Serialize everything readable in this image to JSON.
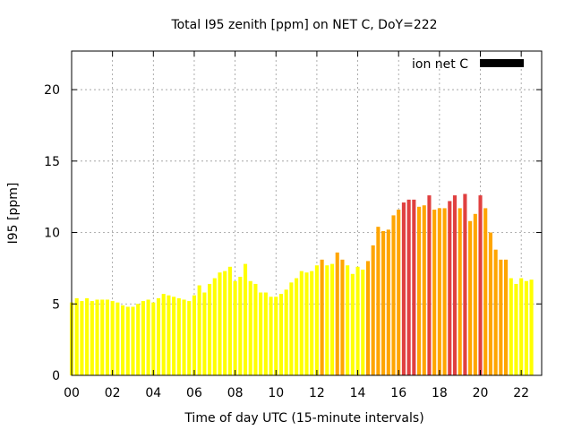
{
  "chart_data": {
    "type": "bar",
    "title": "Total I95 zenith [ppm] on NET C, DoY=222",
    "xlabel": "Time of day UTC (15-minute intervals)",
    "ylabel": "I95 [ppm]",
    "legend": {
      "label": "ion net C",
      "placement": "top-right",
      "swatch_color": "#000000"
    },
    "xlim": [
      0,
      23
    ],
    "ylim": [
      0,
      22.7
    ],
    "grid": true,
    "x_ticks": [
      "00",
      "02",
      "04",
      "06",
      "08",
      "10",
      "12",
      "14",
      "16",
      "18",
      "20",
      "22"
    ],
    "y_ticks": [
      "0",
      "5",
      "10",
      "15",
      "20"
    ],
    "bar_width_hours": 0.18,
    "color_thresholds": [
      {
        "min": 0,
        "color": "#ffff00"
      },
      {
        "min": 8,
        "color": "#ffa500"
      },
      {
        "min": 12,
        "color": "#e04040"
      }
    ],
    "x": [
      0.0,
      0.25,
      0.5,
      0.75,
      1.0,
      1.25,
      1.5,
      1.75,
      2.0,
      2.25,
      2.5,
      2.75,
      3.0,
      3.25,
      3.5,
      3.75,
      4.0,
      4.25,
      4.5,
      4.75,
      5.0,
      5.25,
      5.5,
      5.75,
      6.0,
      6.25,
      6.5,
      6.75,
      7.0,
      7.25,
      7.5,
      7.75,
      8.0,
      8.25,
      8.5,
      8.75,
      9.0,
      9.25,
      9.5,
      9.75,
      10.0,
      10.25,
      10.5,
      10.75,
      11.0,
      11.25,
      11.5,
      11.75,
      12.0,
      12.25,
      12.5,
      12.75,
      13.0,
      13.25,
      13.5,
      13.75,
      14.0,
      14.25,
      14.5,
      14.75,
      15.0,
      15.25,
      15.5,
      15.75,
      16.0,
      16.25,
      16.5,
      16.75,
      17.0,
      17.25,
      17.5,
      17.75,
      18.0,
      18.25,
      18.5,
      18.75,
      19.0,
      19.25,
      19.5,
      19.75,
      20.0,
      20.25,
      20.5,
      20.75,
      21.0,
      21.25,
      21.5,
      21.75,
      22.0,
      22.25,
      22.5,
      22.75
    ],
    "values": [
      5.1,
      5.4,
      5.2,
      5.4,
      5.2,
      5.3,
      5.3,
      5.3,
      5.2,
      5.1,
      4.9,
      4.8,
      4.8,
      5.0,
      5.2,
      5.3,
      5.1,
      5.4,
      5.7,
      5.6,
      5.5,
      5.4,
      5.3,
      5.2,
      5.6,
      6.3,
      5.8,
      6.4,
      6.8,
      7.2,
      7.3,
      7.6,
      6.6,
      6.9,
      7.8,
      6.6,
      6.4,
      5.8,
      5.8,
      5.5,
      5.5,
      5.7,
      6.0,
      6.5,
      6.8,
      7.3,
      7.2,
      7.3,
      7.7,
      8.1,
      7.7,
      7.8,
      8.6,
      8.1,
      7.7,
      7.1,
      7.6,
      7.4,
      8.0,
      9.1,
      10.4,
      10.1,
      10.2,
      11.2,
      11.6,
      12.1,
      12.3,
      12.3,
      11.8,
      11.9,
      12.6,
      11.6,
      11.7,
      11.7,
      12.2,
      12.6,
      11.7,
      12.7,
      10.8,
      11.3,
      12.6,
      11.7,
      10.0,
      8.8,
      8.1,
      8.1,
      6.8,
      6.4,
      6.8,
      6.6,
      6.7,
      0
    ]
  }
}
